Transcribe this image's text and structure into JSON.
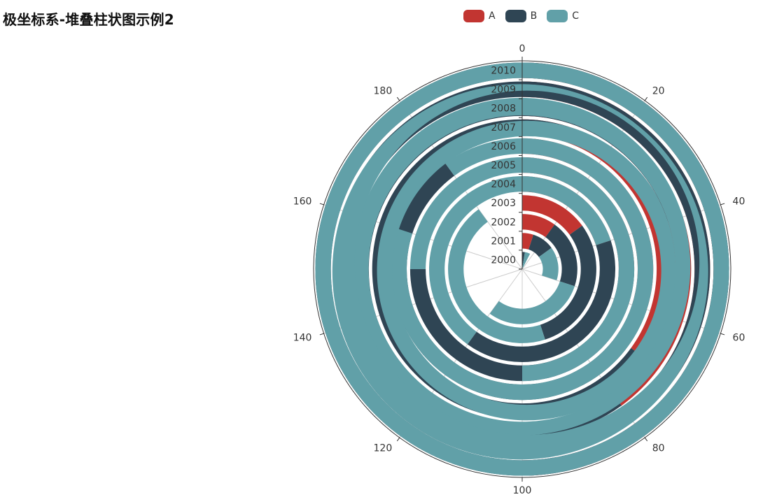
{
  "title": "极坐标系-堆叠柱状图示例2",
  "legend": [
    {
      "name": "A",
      "color": "#c23531"
    },
    {
      "name": "B",
      "color": "#2f4554"
    },
    {
      "name": "C",
      "color": "#61a0a8"
    }
  ],
  "chart_data": {
    "type": "bar",
    "coordinate_system": "polar",
    "stacked": true,
    "title": "极坐标系-堆叠柱状图示例2",
    "angle_axis": {
      "min": 0,
      "max": 200,
      "ticks": [
        0,
        20,
        40,
        60,
        80,
        100,
        120,
        140,
        160,
        180
      ]
    },
    "radius_axis": {
      "categories": [
        "2000",
        "2001",
        "2002",
        "2003",
        "2004",
        "2005",
        "2006",
        "2007",
        "2008",
        "2009",
        "2010"
      ]
    },
    "series": [
      {
        "name": "A",
        "color": "#c23531",
        "values": [
          0,
          10,
          20,
          30,
          40,
          50,
          60,
          70,
          80,
          90,
          100
        ]
      },
      {
        "name": "B",
        "color": "#2f4554",
        "values": [
          5,
          20,
          40,
          60,
          80,
          100,
          120,
          140,
          160,
          180,
          200
        ]
      },
      {
        "name": "C",
        "color": "#61a0a8",
        "values": [
          10,
          30,
          60,
          90,
          120,
          150,
          180,
          210,
          240,
          270,
          300
        ]
      }
    ]
  }
}
